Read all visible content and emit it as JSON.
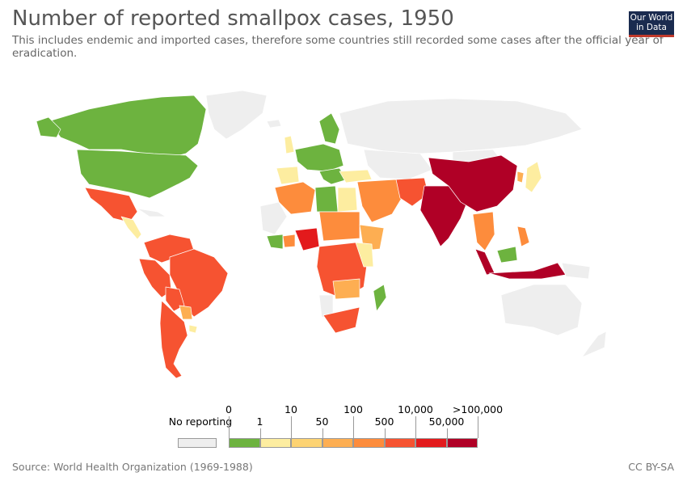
{
  "title": "Number of reported smallpox cases, 1950",
  "subtitle": "This includes endemic and imported cases, therefore some countries still recorded some cases after the official year of eradication.",
  "logo": {
    "line1": "Our World",
    "line2": "in Data"
  },
  "source": "Source: World Health Organization (1969-1988)",
  "license": "CC BY-SA",
  "colors": {
    "no_data": "#eeeeee",
    "zero": "#6db33f",
    "b1": "#fdeda0",
    "b10": "#fdd373",
    "b50": "#fdae52",
    "b100": "#fd8c3c",
    "b500": "#f65331",
    "b10000": "#e31a1c",
    "b50000": "#b00026",
    "border": "#ffffff"
  },
  "legend": {
    "no_reporting_label": "No reporting",
    "bins": [
      {
        "label": "0",
        "color": "#6db33f"
      },
      {
        "label": "1",
        "color": "#fdeda0"
      },
      {
        "label": "10",
        "color": "#fdd373"
      },
      {
        "label": "50",
        "color": "#fdae52"
      },
      {
        "label": "100",
        "color": "#fd8c3c"
      },
      {
        "label": "500",
        "color": "#f65331"
      },
      {
        "label": "10,000",
        "color": "#e31a1c"
      },
      {
        "label": "50,000",
        "color": "#b00026"
      },
      {
        "label": ">100,000",
        "color": "#b00026"
      }
    ]
  }
}
